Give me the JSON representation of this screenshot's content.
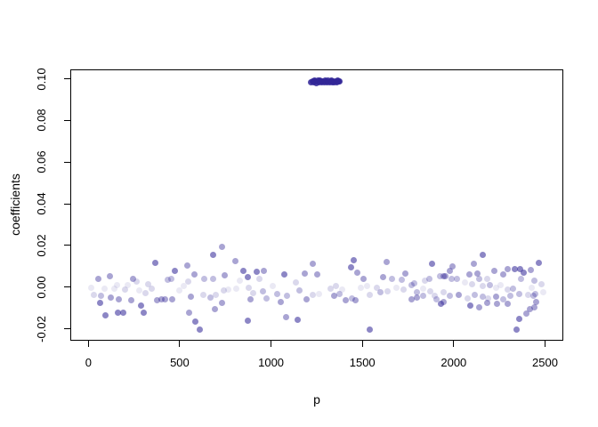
{
  "figure": {
    "background": "#ffffff",
    "axis_color": "#000000"
  },
  "chart_data": {
    "type": "scatter",
    "title": "",
    "xlabel": "p",
    "ylabel": "coefficients",
    "xlim": [
      -99,
      2600
    ],
    "ylim": [
      -0.0257,
      0.1045
    ],
    "grid": false,
    "legend": null,
    "x_ticks": [
      0,
      500,
      1000,
      1500,
      2000,
      2500
    ],
    "x_tick_labels": [
      "0",
      "500",
      "1000",
      "1500",
      "2000",
      "2500"
    ],
    "y_ticks": [
      -0.02,
      0.0,
      0.02,
      0.04,
      0.06,
      0.08,
      0.1
    ],
    "y_tick_labels": [
      "-0.02",
      "0.00",
      "0.02",
      "0.04",
      "0.06",
      "0.08",
      "0.10"
    ],
    "point_base_color_rgb": [
      50,
      39,
      151
    ],
    "shade_alpha": {
      "vl": 0.1,
      "l": 0.18,
      "lm": 0.3,
      "m": 0.42,
      "md": 0.56,
      "c": 0.86
    },
    "points": [
      [
        13,
        0.0003,
        "vl"
      ],
      [
        24,
        -0.0032,
        "l"
      ],
      [
        49,
        0.0046,
        "m"
      ],
      [
        62,
        -0.0039,
        "lm"
      ],
      [
        57,
        -0.0071,
        "md"
      ],
      [
        86,
        -0.0003,
        "vl"
      ],
      [
        114,
        0.0056,
        "m"
      ],
      [
        118,
        -0.0046,
        "m"
      ],
      [
        89,
        -0.0131,
        "md"
      ],
      [
        138,
        -0.0003,
        "vl"
      ],
      [
        154,
        0.0014,
        "vl"
      ],
      [
        162,
        -0.0053,
        "m"
      ],
      [
        159,
        -0.0117,
        "md"
      ],
      [
        186,
        -0.012,
        "md"
      ],
      [
        194,
        -0.0006,
        "l"
      ],
      [
        211,
        0.0014,
        "vl"
      ],
      [
        230,
        -0.006,
        "m"
      ],
      [
        240,
        0.0042,
        "m"
      ],
      [
        259,
        0.0032,
        "l"
      ],
      [
        275,
        -0.0011,
        "vl"
      ],
      [
        284,
        -0.0082,
        "md"
      ],
      [
        300,
        -0.0117,
        "md"
      ],
      [
        308,
        -0.0025,
        "l"
      ],
      [
        324,
        0.0018,
        "l"
      ],
      [
        359,
        0.0121,
        "md"
      ],
      [
        340,
        -0.0003,
        "l"
      ],
      [
        372,
        -0.006,
        "m"
      ],
      [
        397,
        -0.0053,
        "m"
      ],
      [
        417,
        -0.0056,
        "m"
      ],
      [
        429,
        0.0039,
        "lm"
      ],
      [
        450,
        0.0046,
        "lm"
      ],
      [
        469,
        0.0084,
        "md"
      ],
      [
        456,
        -0.0053,
        "m"
      ],
      [
        494,
        -0.0011,
        "vl"
      ],
      [
        518,
        0.0011,
        "vl"
      ],
      [
        537,
        0.011,
        "m"
      ],
      [
        542,
        0.0032,
        "l"
      ],
      [
        558,
        -0.0043,
        "m"
      ],
      [
        547,
        -0.0117,
        "m"
      ],
      [
        575,
        0.0067,
        "m"
      ],
      [
        583,
        -0.016,
        "md"
      ],
      [
        607,
        -0.0198,
        "md"
      ],
      [
        725,
        0.0198,
        "m"
      ],
      [
        677,
        0.016,
        "md"
      ],
      [
        801,
        0.0131,
        "m"
      ],
      [
        842,
        0.0082,
        "md"
      ],
      [
        868,
        0.0053,
        "md"
      ],
      [
        915,
        0.0077,
        "md"
      ],
      [
        958,
        0.0082,
        "m"
      ],
      [
        1068,
        0.0065,
        "md"
      ],
      [
        1222,
        0.0117,
        "m"
      ],
      [
        1178,
        0.007,
        "m"
      ],
      [
        1246,
        0.0065,
        "m"
      ],
      [
        631,
        0.0046,
        "lm"
      ],
      [
        680,
        0.0046,
        "lm"
      ],
      [
        741,
        0.006,
        "m"
      ],
      [
        822,
        0.0036,
        "vl"
      ],
      [
        874,
        0.0003,
        "l"
      ],
      [
        898,
        -0.0025,
        "l"
      ],
      [
        931,
        0.0046,
        "l"
      ],
      [
        951,
        -0.0015,
        "lm"
      ],
      [
        1003,
        0.0011,
        "vl"
      ],
      [
        1028,
        -0.0029,
        "lm"
      ],
      [
        623,
        -0.0032,
        "l"
      ],
      [
        664,
        -0.0046,
        "lm"
      ],
      [
        693,
        -0.0035,
        "l"
      ],
      [
        736,
        -0.0011,
        "l"
      ],
      [
        761,
        -0.0006,
        "vl"
      ],
      [
        806,
        -0.0001,
        "vl"
      ],
      [
        882,
        -0.0053,
        "m"
      ],
      [
        968,
        -0.0049,
        "lm"
      ],
      [
        1049,
        -0.0067,
        "m"
      ],
      [
        1084,
        -0.0039,
        "lm"
      ],
      [
        1133,
        0.0025,
        "l"
      ],
      [
        1149,
        -0.0011,
        "lm"
      ],
      [
        1189,
        -0.0053,
        "m"
      ],
      [
        1222,
        -0.0032,
        "l"
      ],
      [
        1259,
        -0.0029,
        "vl"
      ],
      [
        728,
        -0.0071,
        "m"
      ],
      [
        688,
        -0.0103,
        "m"
      ],
      [
        866,
        -0.0157,
        "md"
      ],
      [
        1076,
        -0.0138,
        "m"
      ],
      [
        1141,
        -0.0152,
        "md"
      ],
      [
        1448,
        0.0135,
        "md"
      ],
      [
        1432,
        0.0099,
        "md"
      ],
      [
        1469,
        0.0074,
        "m"
      ],
      [
        1502,
        0.0046,
        "m"
      ],
      [
        1626,
        0.0127,
        "m"
      ],
      [
        1610,
        0.0053,
        "m"
      ],
      [
        1659,
        0.0042,
        "lm"
      ],
      [
        1712,
        0.0039,
        "lm"
      ],
      [
        1731,
        0.007,
        "m"
      ],
      [
        1877,
        0.0117,
        "md"
      ],
      [
        1780,
        0.0022,
        "lm"
      ],
      [
        1837,
        0.0036,
        "l"
      ],
      [
        1861,
        0.0042,
        "lm"
      ],
      [
        1922,
        0.0056,
        "lm"
      ],
      [
        1950,
        0.0056,
        "m"
      ],
      [
        1319,
        -0.0001,
        "l"
      ],
      [
        1351,
        0.0008,
        "l"
      ],
      [
        1383,
        -0.0006,
        "vl"
      ],
      [
        1343,
        -0.0039,
        "m"
      ],
      [
        1372,
        -0.0029,
        "lm"
      ],
      [
        1405,
        -0.006,
        "m"
      ],
      [
        1440,
        -0.0049,
        "lm"
      ],
      [
        1456,
        -0.0057,
        "m"
      ],
      [
        1485,
        0.0003,
        "vl"
      ],
      [
        1521,
        0.0011,
        "vl"
      ],
      [
        1537,
        -0.0032,
        "l"
      ],
      [
        1573,
        0.0003,
        "l"
      ],
      [
        1594,
        -0.002,
        "lm"
      ],
      [
        1634,
        -0.0015,
        "l"
      ],
      [
        1683,
        0.0003,
        "vl"
      ],
      [
        1723,
        -0.0006,
        "l"
      ],
      [
        1764,
        0.0014,
        "lm"
      ],
      [
        1796,
        -0.002,
        "lm"
      ],
      [
        1829,
        -0.0001,
        "vl"
      ],
      [
        1869,
        -0.0015,
        "l"
      ],
      [
        1764,
        -0.0053,
        "m"
      ],
      [
        1796,
        -0.0046,
        "m"
      ],
      [
        1829,
        -0.0039,
        "lm"
      ],
      [
        1893,
        -0.0039,
        "l"
      ],
      [
        1926,
        -0.0074,
        "md"
      ],
      [
        1901,
        -0.0053,
        "lm"
      ],
      [
        1534,
        -0.0199,
        "md"
      ],
      [
        2152,
        0.016,
        "md"
      ],
      [
        2104,
        0.0117,
        "m"
      ],
      [
        1990,
        0.0103,
        "m"
      ],
      [
        1974,
        0.0082,
        "m"
      ],
      [
        1942,
        0.0056,
        "m"
      ],
      [
        2080,
        0.0065,
        "m"
      ],
      [
        2123,
        0.007,
        "m"
      ],
      [
        2136,
        0.0042,
        "lm"
      ],
      [
        2177,
        0.0042,
        "l"
      ],
      [
        2217,
        0.0082,
        "m"
      ],
      [
        2266,
        0.0065,
        "m"
      ],
      [
        2290,
        0.0089,
        "m"
      ],
      [
        2330,
        0.0089,
        "md"
      ],
      [
        2359,
        0.0093,
        "md"
      ],
      [
        2379,
        0.0074,
        "md"
      ],
      [
        2460,
        0.0121,
        "md"
      ],
      [
        1982,
        0.0042,
        "lm"
      ],
      [
        2015,
        0.0046,
        "lm"
      ],
      [
        2055,
        0.0025,
        "vl"
      ],
      [
        2096,
        0.0018,
        "l"
      ],
      [
        2152,
        0.0008,
        "l"
      ],
      [
        2193,
        0.0014,
        "lm"
      ],
      [
        2225,
        0.0003,
        "vl"
      ],
      [
        2250,
        0.0014,
        "vl"
      ],
      [
        2290,
        -0.0006,
        "l"
      ],
      [
        2322,
        -0.0001,
        "lm"
      ],
      [
        2363,
        0.0046,
        "lm"
      ],
      [
        2436,
        0.0036,
        "lm"
      ],
      [
        2476,
        0.0018,
        "l"
      ],
      [
        1942,
        -0.002,
        "l"
      ],
      [
        1974,
        -0.0039,
        "lm"
      ],
      [
        2023,
        -0.0032,
        "m"
      ],
      [
        2071,
        -0.0049,
        "l"
      ],
      [
        2112,
        -0.0035,
        "lm"
      ],
      [
        2152,
        -0.0043,
        "lm"
      ],
      [
        2185,
        -0.0049,
        "l"
      ],
      [
        2225,
        -0.0043,
        "m"
      ],
      [
        2266,
        -0.0053,
        "lm"
      ],
      [
        2306,
        -0.0039,
        "lm"
      ],
      [
        2354,
        -0.0029,
        "lm"
      ],
      [
        2403,
        -0.0035,
        "l"
      ],
      [
        2443,
        -0.0029,
        "lm"
      ],
      [
        2484,
        -0.002,
        "vl"
      ],
      [
        2087,
        -0.0082,
        "md"
      ],
      [
        2136,
        -0.0091,
        "m"
      ],
      [
        2177,
        -0.0071,
        "m"
      ],
      [
        2233,
        -0.0077,
        "m"
      ],
      [
        2290,
        -0.0074,
        "m"
      ],
      [
        1942,
        -0.0067,
        "m"
      ],
      [
        2411,
        -0.01,
        "m"
      ],
      [
        2436,
        -0.0091,
        "m"
      ],
      [
        2395,
        -0.0124,
        "m"
      ],
      [
        2354,
        -0.0148,
        "md"
      ],
      [
        2338,
        -0.0199,
        "md"
      ],
      [
        2418,
        0.0088,
        "m"
      ],
      [
        2424,
        0.0,
        "vl"
      ],
      [
        2431,
        -0.0039,
        "lm"
      ],
      [
        2447,
        -0.0067,
        "m"
      ],
      [
        1216,
        0.0988,
        "c"
      ],
      [
        1222,
        0.0993,
        "c"
      ],
      [
        1228,
        0.0987,
        "c"
      ],
      [
        1233,
        0.0996,
        "c"
      ],
      [
        1239,
        0.099,
        "c"
      ],
      [
        1245,
        0.0985,
        "c"
      ],
      [
        1251,
        0.0994,
        "c"
      ],
      [
        1256,
        0.0989,
        "c"
      ],
      [
        1262,
        0.0997,
        "c"
      ],
      [
        1268,
        0.0991,
        "c"
      ],
      [
        1274,
        0.0986,
        "c"
      ],
      [
        1279,
        0.0993,
        "c"
      ],
      [
        1285,
        0.0988,
        "c"
      ],
      [
        1291,
        0.0995,
        "c"
      ],
      [
        1297,
        0.099,
        "c"
      ],
      [
        1302,
        0.0987,
        "c"
      ],
      [
        1308,
        0.0994,
        "c"
      ],
      [
        1314,
        0.0989,
        "c"
      ],
      [
        1320,
        0.0992,
        "c"
      ],
      [
        1325,
        0.0996,
        "c"
      ],
      [
        1331,
        0.0988,
        "c"
      ],
      [
        1337,
        0.0991,
        "c"
      ],
      [
        1343,
        0.0986,
        "c"
      ],
      [
        1348,
        0.0993,
        "c"
      ],
      [
        1354,
        0.0989,
        "c"
      ],
      [
        1360,
        0.0995,
        "c"
      ],
      [
        1366,
        0.099,
        "c"
      ],
      [
        1372,
        0.0992,
        "c"
      ]
    ]
  }
}
